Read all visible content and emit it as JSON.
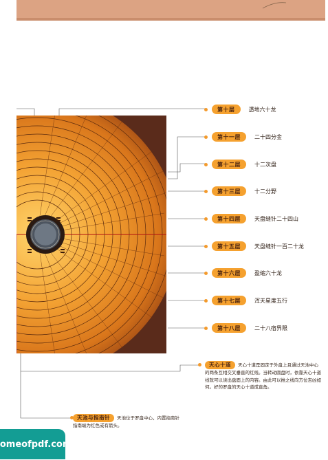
{
  "layers": [
    {
      "label": "第十层",
      "text": "透地六十龙"
    },
    {
      "label": "第十一层",
      "text": "二十四分金"
    },
    {
      "label": "第十二层",
      "text": "十二次盘"
    },
    {
      "label": "第十三层",
      "text": "十二分野"
    },
    {
      "label": "第十四层",
      "text": "天盘缝针二十四山"
    },
    {
      "label": "第十五层",
      "text": "天盘缝针一百二十龙"
    },
    {
      "label": "第十六层",
      "text": "盈缩六十龙"
    },
    {
      "label": "第十七层",
      "text": "浑天星度五行"
    },
    {
      "label": "第十八层",
      "text": "二十八宿界限"
    }
  ],
  "notes": {
    "tianxin": {
      "label": "天心十道",
      "text": "天心十道是固定于外盘上且通过天池中心的两条互相交叉垂直的红线。当转动圆盘时，依靠天心十道线就可以读出盘面上的内容。由此可以推之线向方位吉凶如何。好的罗盘的天心十道成直角。"
    },
    "tianchi": {
      "label": "天池与指南针",
      "text": "天池位于罗盘中心，内置指南针指南端为红色或有箭头。"
    }
  },
  "watermark": "homeofpdf.com",
  "colors": {
    "accent": "#f5a12f",
    "band": "#dca383",
    "logo": "#139d94",
    "photo_bg": "#5a2b1b"
  }
}
